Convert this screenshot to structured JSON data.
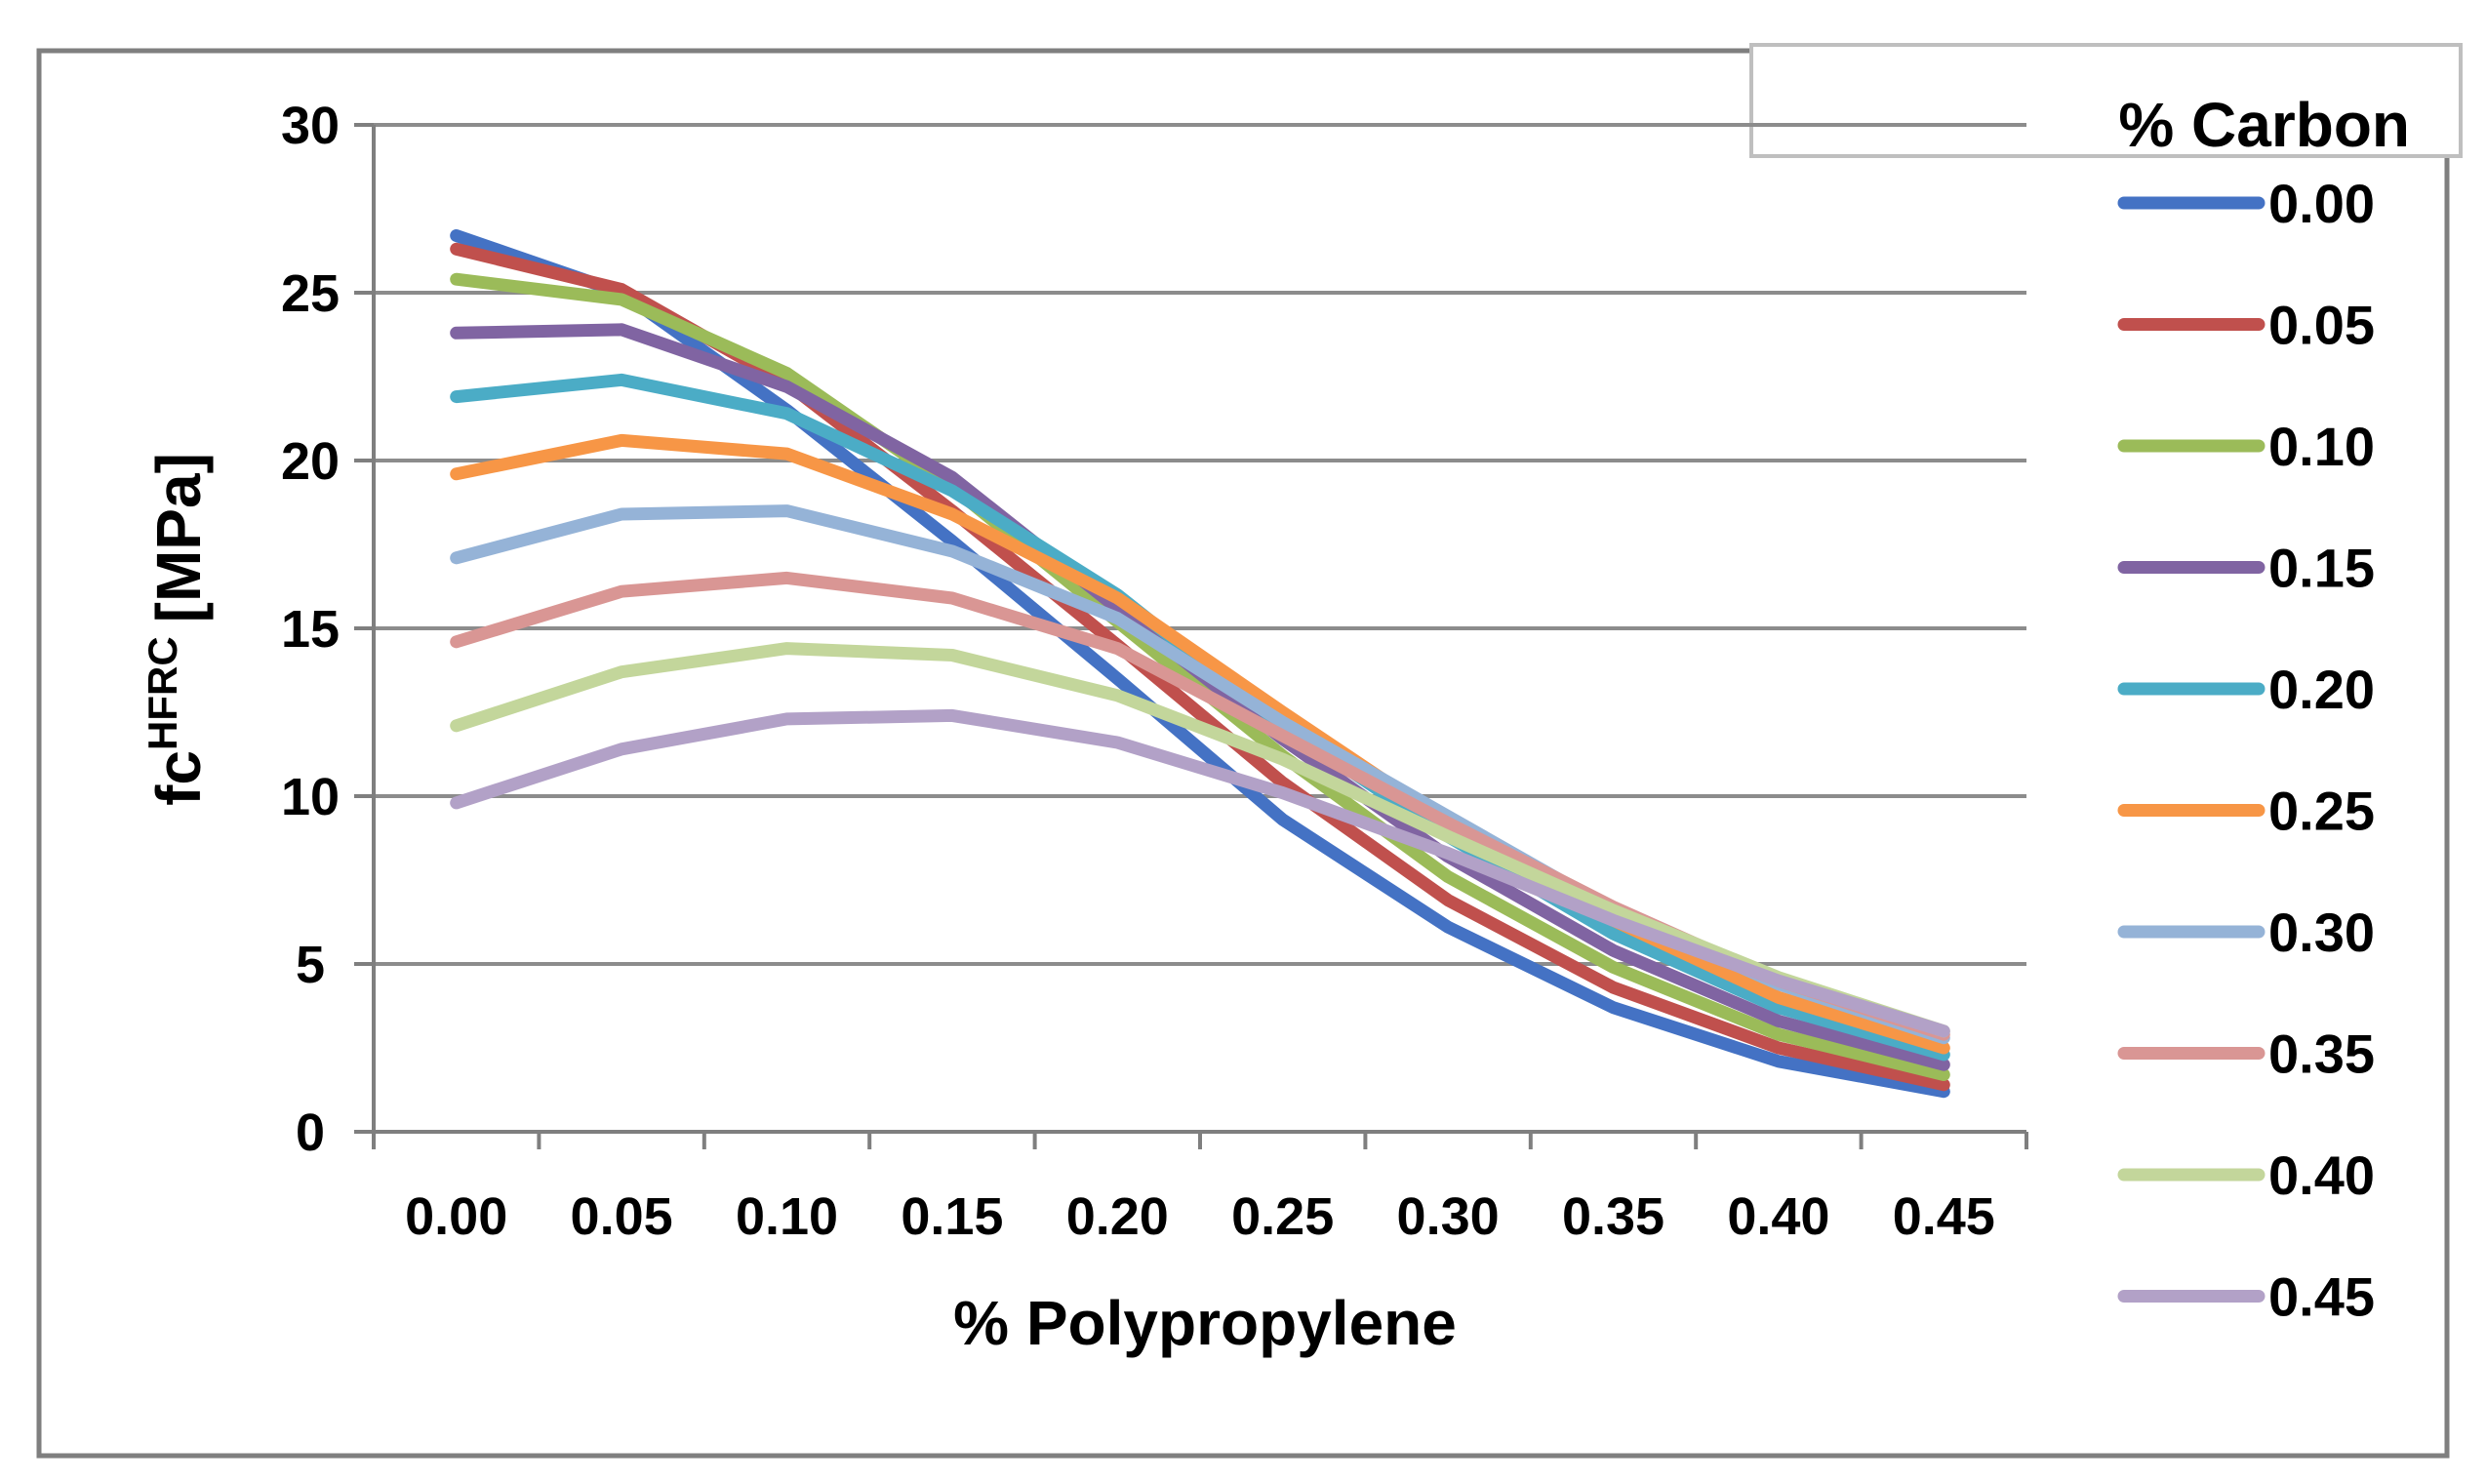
{
  "chart_data": {
    "type": "line",
    "title": "",
    "xlabel": "% Polypropylene",
    "ylabel_main": "fc",
    "ylabel_sup": "HFRC",
    "ylabel_unit": "[MPa]",
    "categories": [
      "0.00",
      "0.05",
      "0.10",
      "0.15",
      "0.20",
      "0.25",
      "0.30",
      "0.35",
      "0.40",
      "0.45"
    ],
    "y_ticks": [
      "0",
      "5",
      "10",
      "15",
      "20",
      "25",
      "30"
    ],
    "ylim": [
      0,
      30
    ],
    "grid": true,
    "legend_title": "% Carbon",
    "legend_position": "right",
    "series": [
      {
        "name": "0.00",
        "color": "#4472C4",
        "values": [
          26.7,
          25.0,
          21.5,
          17.6,
          13.5,
          9.3,
          6.1,
          3.7,
          2.1,
          1.2
        ]
      },
      {
        "name": "0.05",
        "color": "#C0504D",
        "values": [
          26.3,
          25.1,
          22.3,
          18.5,
          14.5,
          10.4,
          6.9,
          4.3,
          2.5,
          1.4
        ]
      },
      {
        "name": "0.10",
        "color": "#9BBB59",
        "values": [
          25.4,
          24.8,
          22.6,
          19.2,
          15.2,
          11.2,
          7.6,
          4.9,
          2.9,
          1.7
        ]
      },
      {
        "name": "0.15",
        "color": "#8064A2",
        "values": [
          23.8,
          23.9,
          22.2,
          19.5,
          15.6,
          11.7,
          8.2,
          5.4,
          3.3,
          2.0
        ]
      },
      {
        "name": "0.20",
        "color": "#4BACC6",
        "values": [
          21.9,
          22.4,
          21.4,
          19.1,
          16.0,
          12.1,
          8.8,
          5.9,
          3.7,
          2.3
        ]
      },
      {
        "name": "0.25",
        "color": "#F79646",
        "values": [
          19.6,
          20.6,
          20.2,
          18.4,
          15.9,
          12.5,
          9.2,
          6.3,
          4.0,
          2.5
        ]
      },
      {
        "name": "0.30",
        "color": "#95B3D7",
        "values": [
          17.1,
          18.4,
          18.5,
          17.3,
          15.3,
          12.2,
          9.4,
          6.6,
          4.4,
          2.8
        ]
      },
      {
        "name": "0.35",
        "color": "#D99694",
        "values": [
          14.6,
          16.1,
          16.5,
          15.9,
          14.4,
          11.8,
          9.2,
          6.7,
          4.5,
          2.9
        ]
      },
      {
        "name": "0.40",
        "color": "#C3D69B",
        "values": [
          12.1,
          13.7,
          14.4,
          14.2,
          13.0,
          11.1,
          8.8,
          6.6,
          4.6,
          3.0
        ]
      },
      {
        "name": "0.45",
        "color": "#B2A1C7",
        "values": [
          9.8,
          11.4,
          12.3,
          12.4,
          11.6,
          10.1,
          8.3,
          6.3,
          4.5,
          3.0
        ]
      }
    ]
  }
}
